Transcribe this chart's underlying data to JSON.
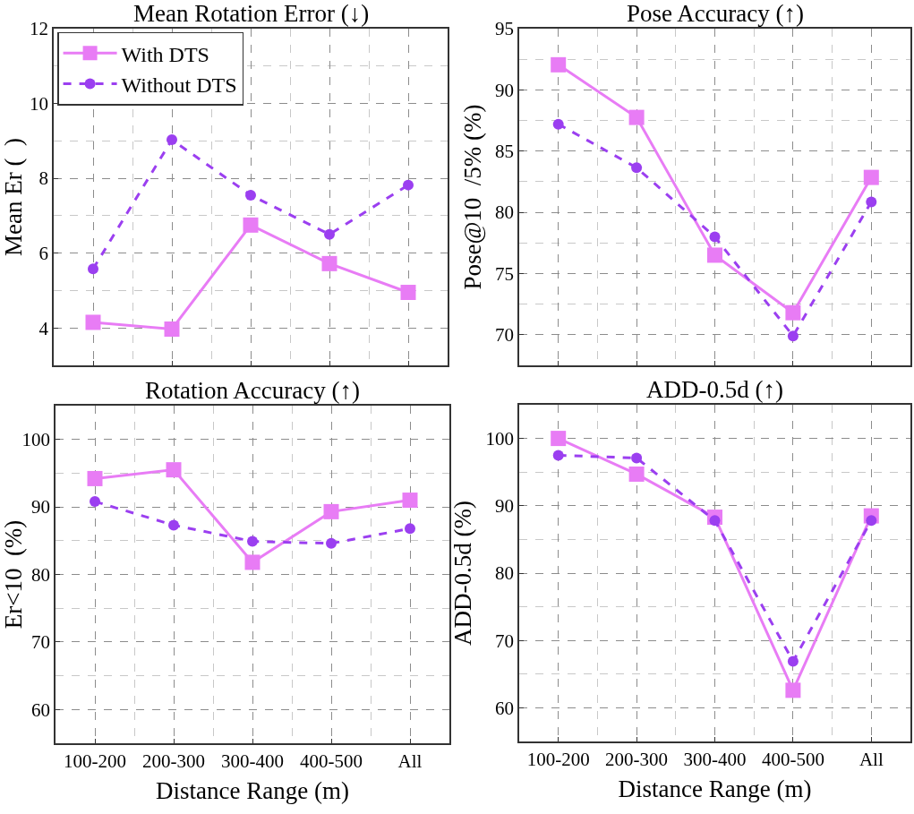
{
  "chart_data": [
    {
      "type": "line",
      "title": "Mean Rotation Error (↓)",
      "ylabel": "Mean Er (  )",
      "categories": [
        null,
        null,
        null,
        null,
        null
      ],
      "tick_labels": "y",
      "ylim": [
        3,
        12
      ],
      "yticks": [
        4,
        6,
        8,
        10,
        12
      ],
      "grid": true,
      "legend": "top left",
      "series": [
        {
          "name": "With DTS",
          "color": "#e87cf5",
          "marker": "square",
          "line_style": "solid",
          "values": [
            4.15,
            3.97,
            6.75,
            5.72,
            4.95
          ]
        },
        {
          "name": "Without DTS",
          "color": "#9b3ff0",
          "marker": "circle",
          "line_style": "dashed",
          "values": [
            5.58,
            9.03,
            7.55,
            6.5,
            7.82
          ]
        }
      ]
    },
    {
      "type": "line",
      "title": "Pose Accuracy (↑)",
      "ylabel": "Pose@10  /5% (%)",
      "categories": [
        null,
        null,
        null,
        null,
        null
      ],
      "tick_labels": "y",
      "ylim": [
        67.5,
        95
      ],
      "yticks": [
        70,
        75,
        80,
        85,
        90,
        95
      ],
      "grid": true,
      "series": [
        {
          "color": "#e87cf5",
          "marker": "square",
          "line_style": "solid",
          "values": [
            92.05,
            87.75,
            76.5,
            71.8,
            82.85
          ]
        },
        {
          "color": "#9b3ff0",
          "marker": "circle",
          "line_style": "dashed",
          "values": [
            87.2,
            83.65,
            78.0,
            69.9,
            80.85
          ]
        }
      ]
    },
    {
      "type": "line",
      "title": "Rotation Accuracy (↑)",
      "xlabel": "Distance Range (m)",
      "ylabel": "Er<10  (%)",
      "categories": [
        "100-200",
        "200-300",
        "300-400",
        "400-500",
        "All"
      ],
      "ylim": [
        55,
        105
      ],
      "yticks": [
        60,
        70,
        80,
        90,
        100
      ],
      "grid": true,
      "series": [
        {
          "color": "#e87cf5",
          "marker": "square",
          "line_style": "solid",
          "values": [
            94.2,
            95.5,
            81.8,
            89.3,
            91.0
          ]
        },
        {
          "color": "#9b3ff0",
          "marker": "circle",
          "line_style": "dashed",
          "values": [
            90.8,
            87.3,
            84.9,
            84.6,
            86.8
          ]
        }
      ]
    },
    {
      "type": "line",
      "title": "ADD-0.5d (↑)",
      "xlabel": "Distance Range (m)",
      "ylabel": "ADD-0.5d (%)",
      "categories": [
        "100-200",
        "200-300",
        "300-400",
        "400-500",
        "All"
      ],
      "ylim": [
        55,
        105
      ],
      "yticks": [
        60,
        70,
        80,
        90,
        100
      ],
      "grid": true,
      "series": [
        {
          "color": "#e87cf5",
          "marker": "square",
          "line_style": "solid",
          "values": [
            100,
            94.7,
            88.3,
            62.6,
            88.5
          ]
        },
        {
          "color": "#9b3ff0",
          "marker": "circle",
          "line_style": "dashed",
          "values": [
            97.5,
            97.1,
            87.8,
            66.9,
            87.8
          ]
        }
      ]
    }
  ]
}
